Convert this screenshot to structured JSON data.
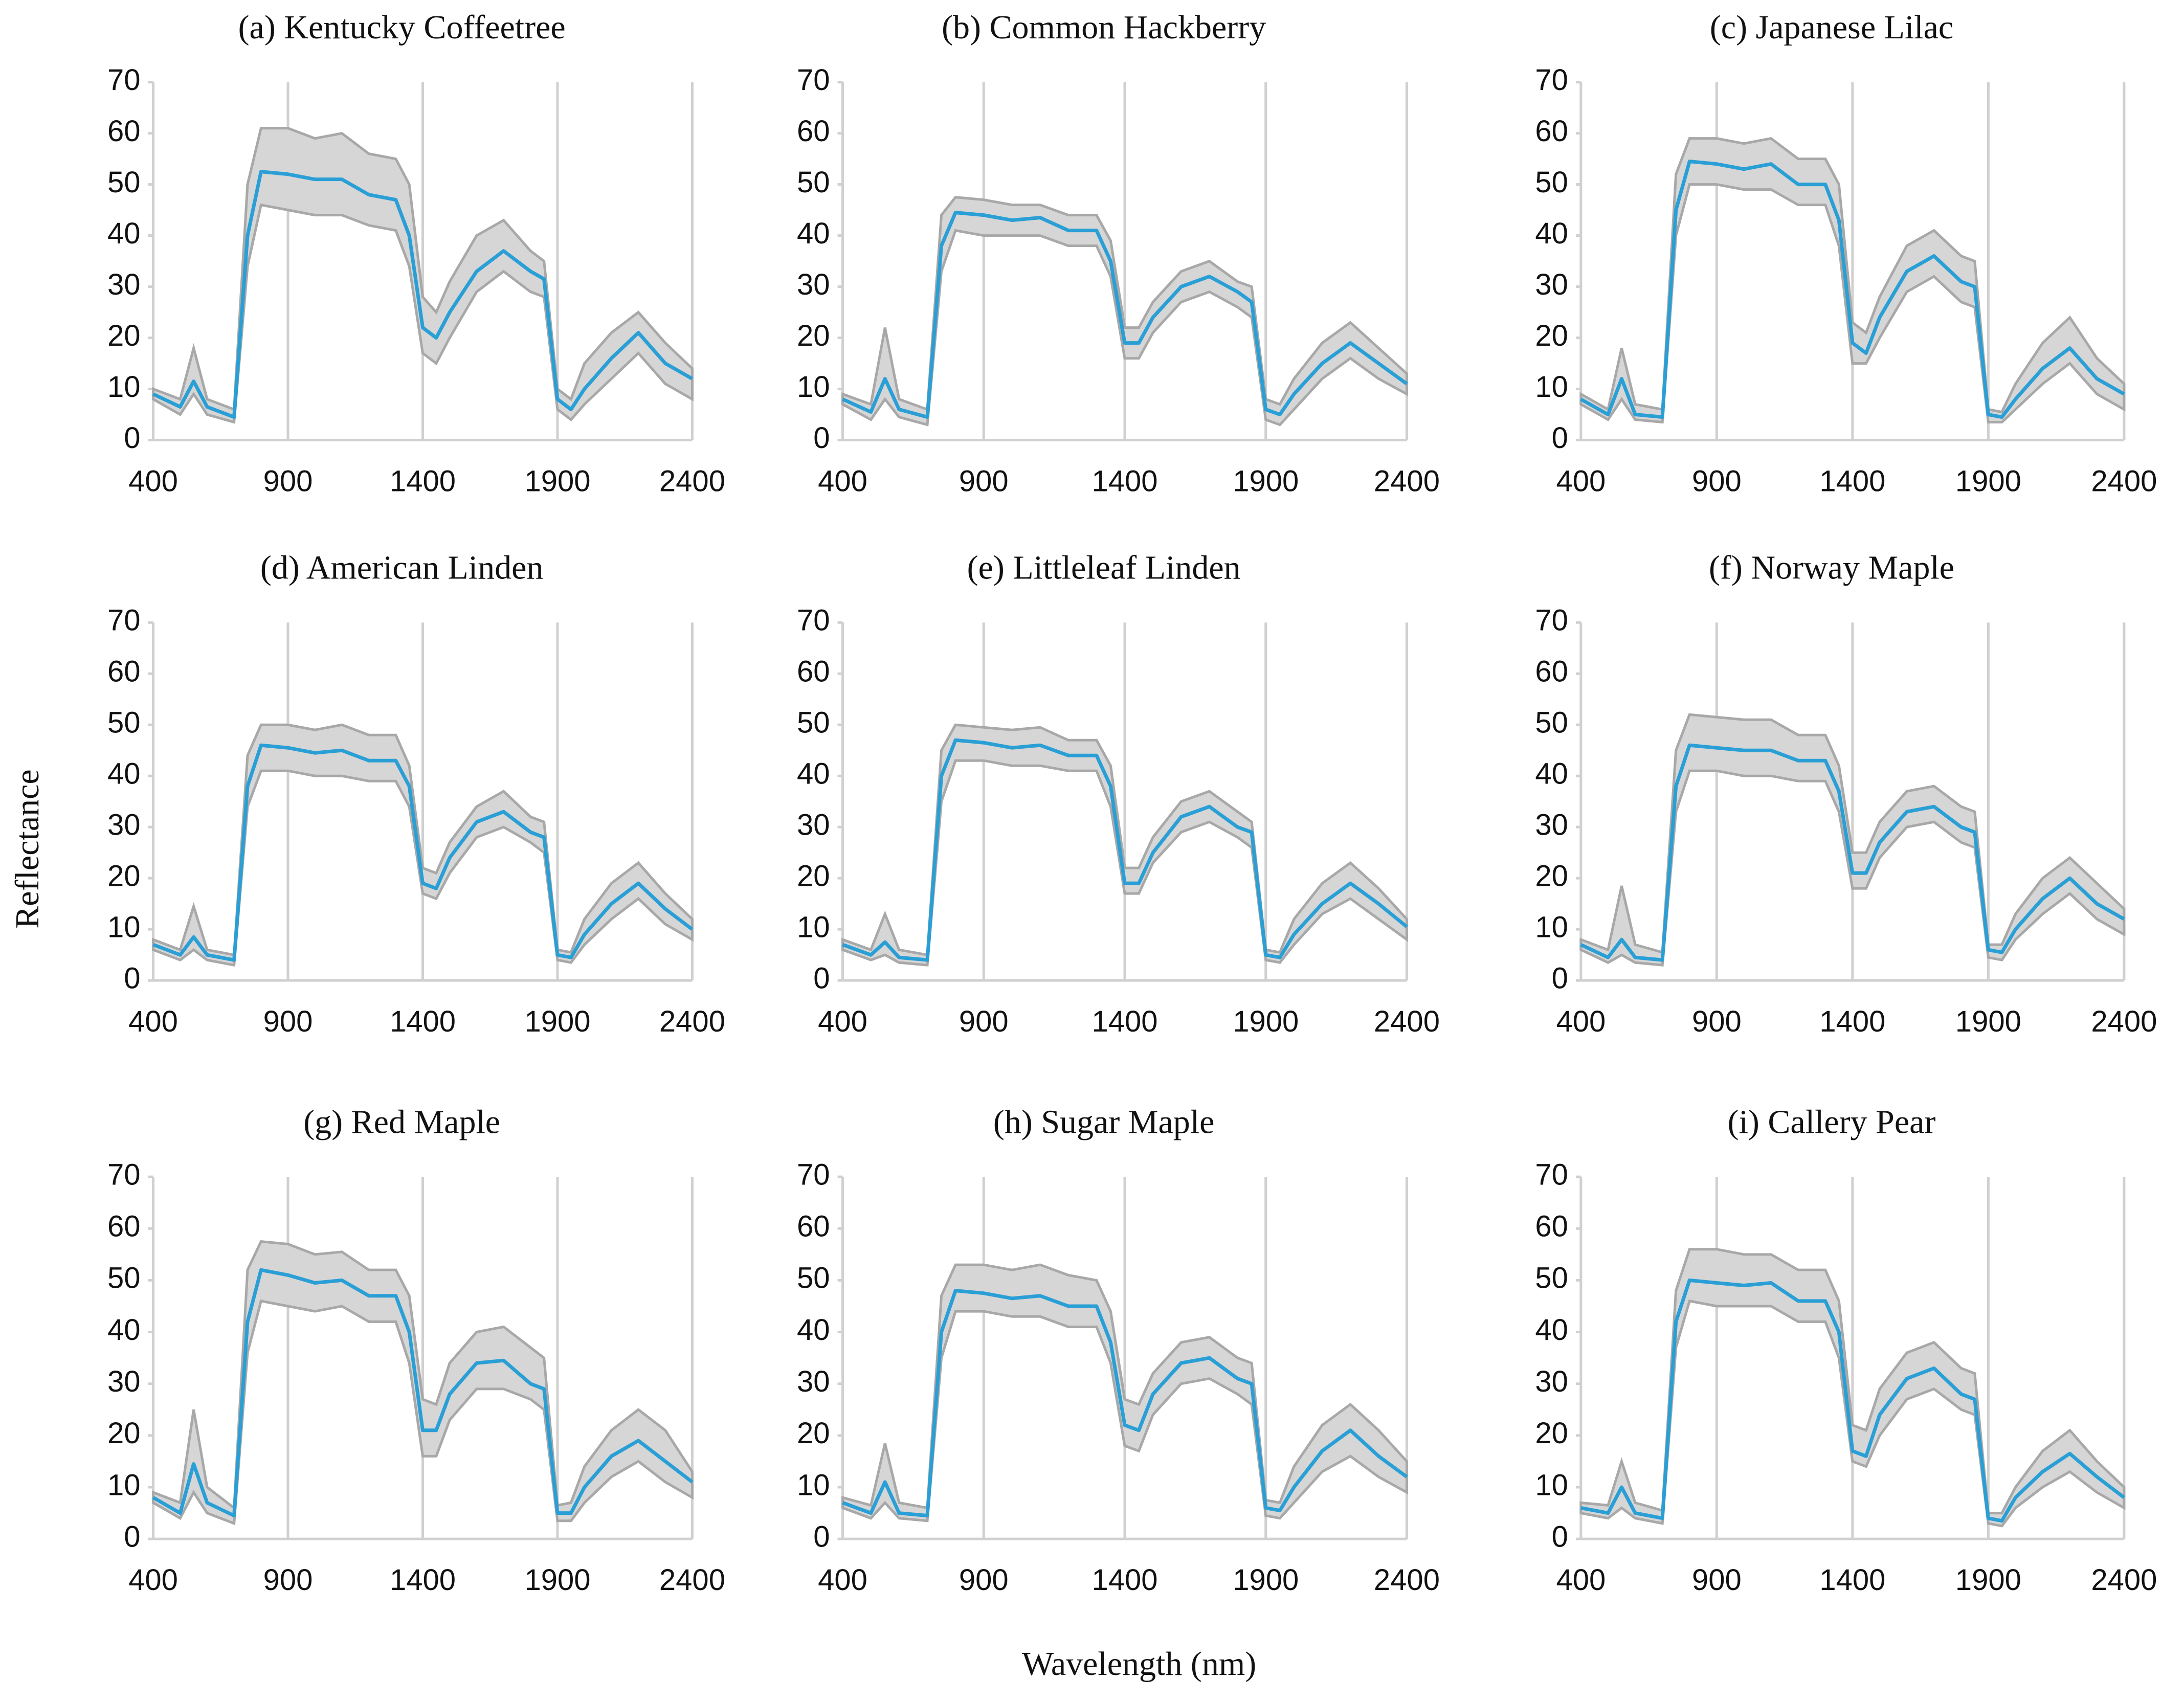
{
  "ylabel": "Reflectance",
  "xlabel": "Wavelength (nm)",
  "chart_data": [
    {
      "type": "line",
      "title": "(a) Kentucky Coffeetree",
      "x": [
        400,
        500,
        550,
        600,
        700,
        750,
        800,
        900,
        1000,
        1100,
        1200,
        1300,
        1350,
        1400,
        1450,
        1500,
        1600,
        1700,
        1800,
        1850,
        1900,
        1950,
        2000,
        2100,
        2200,
        2300,
        2400
      ],
      "series": [
        {
          "color": "#2a9fd6",
          "values": [
            9,
            6.5,
            11.5,
            6.5,
            4.5,
            40,
            52.5,
            52,
            51,
            51,
            48,
            47,
            40,
            22,
            20,
            25,
            33,
            37,
            33,
            31.5,
            8,
            6,
            10,
            16,
            21,
            15,
            12
          ]
        }
      ],
      "band": {
        "color": "#d6d6d6",
        "upper": [
          10,
          8,
          18,
          8,
          6,
          50,
          61,
          61,
          59,
          60,
          56,
          55,
          50,
          28,
          25,
          31,
          40,
          43,
          37,
          35,
          10,
          8,
          15,
          21,
          25,
          19,
          14
        ],
        "lower": [
          8,
          5,
          9,
          5,
          3.5,
          34,
          46,
          45,
          44,
          44,
          42,
          41,
          34,
          17,
          15,
          20,
          29,
          33,
          29,
          28,
          6,
          4,
          7,
          12,
          17,
          11,
          8
        ]
      },
      "xlim": [
        400,
        2400
      ],
      "xticks": [
        400,
        900,
        1400,
        1900,
        2400
      ],
      "ylim": [
        0,
        70
      ],
      "yticks": [
        0,
        10,
        20,
        30,
        40,
        50,
        60,
        70
      ],
      "grid": "x"
    },
    {
      "type": "line",
      "title": "(b) Common Hackberry",
      "x": [
        400,
        500,
        550,
        600,
        700,
        750,
        800,
        900,
        1000,
        1100,
        1200,
        1300,
        1350,
        1400,
        1450,
        1500,
        1600,
        1700,
        1800,
        1850,
        1900,
        1950,
        2000,
        2100,
        2200,
        2300,
        2400
      ],
      "series": [
        {
          "color": "#2a9fd6",
          "values": [
            8,
            5.5,
            12,
            6,
            4.5,
            38,
            44.5,
            44,
            43,
            43.5,
            41,
            41,
            35,
            19,
            19,
            24,
            30,
            32,
            29,
            27,
            6,
            5,
            9,
            15,
            19,
            15,
            11
          ]
        }
      ],
      "band": {
        "color": "#d6d6d6",
        "upper": [
          9,
          7,
          22,
          8,
          6,
          44,
          47.5,
          47,
          46,
          46,
          44,
          44,
          39,
          22,
          22,
          27,
          33,
          35,
          31,
          30,
          8,
          7,
          12,
          19,
          23,
          18,
          13
        ],
        "lower": [
          7,
          4,
          8,
          4.5,
          3,
          33,
          41,
          40,
          40,
          40,
          38,
          38,
          32,
          16,
          16,
          21,
          27,
          29,
          26,
          24,
          4,
          3,
          6,
          12,
          16,
          12,
          9
        ]
      },
      "xlim": [
        400,
        2400
      ],
      "xticks": [
        400,
        900,
        1400,
        1900,
        2400
      ],
      "ylim": [
        0,
        70
      ],
      "yticks": [
        0,
        10,
        20,
        30,
        40,
        50,
        60,
        70
      ],
      "grid": "x"
    },
    {
      "type": "line",
      "title": "(c) Japanese Lilac",
      "x": [
        400,
        500,
        550,
        600,
        700,
        750,
        800,
        900,
        1000,
        1100,
        1200,
        1300,
        1350,
        1400,
        1450,
        1500,
        1600,
        1700,
        1800,
        1850,
        1900,
        1950,
        2000,
        2100,
        2200,
        2300,
        2400
      ],
      "series": [
        {
          "color": "#2a9fd6",
          "values": [
            8,
            5,
            12,
            5,
            4.5,
            45,
            54.5,
            54,
            53,
            54,
            50,
            50,
            43,
            19,
            17,
            24,
            33,
            36,
            31,
            30,
            5,
            4.5,
            8,
            14,
            18,
            12,
            9
          ]
        }
      ],
      "band": {
        "color": "#d6d6d6",
        "upper": [
          9,
          6,
          18,
          7,
          6,
          52,
          59,
          59,
          58,
          59,
          55,
          55,
          50,
          23,
          21,
          28,
          38,
          41,
          36,
          35,
          6,
          5.5,
          11,
          19,
          24,
          16,
          11
        ],
        "lower": [
          7,
          4,
          8,
          4,
          3.5,
          40,
          50,
          50,
          49,
          49,
          46,
          46,
          38,
          15,
          15,
          20,
          29,
          32,
          27,
          26,
          3.5,
          3.5,
          6,
          11,
          15,
          9,
          6
        ]
      },
      "xlim": [
        400,
        2400
      ],
      "xticks": [
        400,
        900,
        1400,
        1900,
        2400
      ],
      "ylim": [
        0,
        70
      ],
      "yticks": [
        0,
        10,
        20,
        30,
        40,
        50,
        60,
        70
      ],
      "grid": "x"
    },
    {
      "type": "line",
      "title": "(d) American Linden",
      "x": [
        400,
        500,
        550,
        600,
        700,
        750,
        800,
        900,
        1000,
        1100,
        1200,
        1300,
        1350,
        1400,
        1450,
        1500,
        1600,
        1700,
        1800,
        1850,
        1900,
        1950,
        2000,
        2100,
        2200,
        2300,
        2400
      ],
      "series": [
        {
          "color": "#2a9fd6",
          "values": [
            7,
            5,
            8.5,
            5,
            4,
            38,
            46,
            45.5,
            44.5,
            45,
            43,
            43,
            38,
            19,
            18,
            24,
            31,
            33,
            29,
            28,
            5,
            4.5,
            9,
            15,
            19,
            14,
            10
          ]
        }
      ],
      "band": {
        "color": "#d6d6d6",
        "upper": [
          8,
          6,
          14.5,
          6,
          5,
          44,
          50,
          50,
          49,
          50,
          48,
          48,
          42,
          22,
          21,
          27,
          34,
          37,
          32,
          31,
          6,
          5.5,
          12,
          19,
          23,
          17,
          12
        ],
        "lower": [
          6,
          4,
          6,
          4,
          3,
          34,
          41,
          41,
          40,
          40,
          39,
          39,
          34,
          17,
          16,
          21,
          28,
          30,
          27,
          25,
          4,
          3.5,
          7,
          12,
          16,
          11,
          8
        ]
      },
      "xlim": [
        400,
        2400
      ],
      "xticks": [
        400,
        900,
        1400,
        1900,
        2400
      ],
      "ylim": [
        0,
        70
      ],
      "yticks": [
        0,
        10,
        20,
        30,
        40,
        50,
        60,
        70
      ],
      "grid": "x"
    },
    {
      "type": "line",
      "title": "(e) Littleleaf Linden",
      "x": [
        400,
        500,
        550,
        600,
        700,
        750,
        800,
        900,
        1000,
        1100,
        1200,
        1300,
        1350,
        1400,
        1450,
        1500,
        1600,
        1700,
        1800,
        1850,
        1900,
        1950,
        2000,
        2100,
        2200,
        2300,
        2400
      ],
      "series": [
        {
          "color": "#2a9fd6",
          "values": [
            7,
            5,
            7.5,
            4.5,
            4,
            40,
            47,
            46.5,
            45.5,
            46,
            44,
            44,
            38,
            19,
            19,
            25,
            32,
            34,
            30,
            29,
            5,
            4.5,
            9,
            15,
            19,
            15,
            10.5
          ]
        }
      ],
      "band": {
        "color": "#d6d6d6",
        "upper": [
          8,
          6,
          13,
          6,
          5,
          45,
          50,
          49.5,
          49,
          49.5,
          47,
          47,
          42,
          22,
          22,
          28,
          35,
          37,
          33,
          31,
          6,
          5.5,
          12,
          19,
          23,
          18,
          12
        ],
        "lower": [
          6,
          4,
          5,
          3.5,
          3,
          35,
          43,
          43,
          42,
          42,
          41,
          41,
          34,
          17,
          17,
          23,
          29,
          31,
          28,
          26,
          4,
          3.5,
          7,
          13,
          16,
          12,
          8
        ]
      },
      "xlim": [
        400,
        2400
      ],
      "xticks": [
        400,
        900,
        1400,
        1900,
        2400
      ],
      "ylim": [
        0,
        70
      ],
      "yticks": [
        0,
        10,
        20,
        30,
        40,
        50,
        60,
        70
      ],
      "grid": "x"
    },
    {
      "type": "line",
      "title": "(f) Norway Maple",
      "x": [
        400,
        500,
        550,
        600,
        700,
        750,
        800,
        900,
        1000,
        1100,
        1200,
        1300,
        1350,
        1400,
        1450,
        1500,
        1600,
        1700,
        1800,
        1850,
        1900,
        1950,
        2000,
        2100,
        2200,
        2300,
        2400
      ],
      "series": [
        {
          "color": "#2a9fd6",
          "values": [
            7,
            4.5,
            8,
            4.5,
            4,
            38,
            46,
            45.5,
            45,
            45,
            43,
            43,
            37,
            21,
            21,
            27,
            33,
            34,
            30,
            29,
            6,
            5.5,
            10,
            16,
            20,
            15,
            12
          ]
        }
      ],
      "band": {
        "color": "#d6d6d6",
        "upper": [
          8,
          6,
          18.5,
          7,
          5.5,
          45,
          52,
          51.5,
          51,
          51,
          48,
          48,
          42,
          25,
          25,
          31,
          37,
          38,
          34,
          33,
          7,
          7,
          13,
          20,
          24,
          19,
          14
        ],
        "lower": [
          6,
          3.5,
          5,
          3.5,
          3,
          33,
          41,
          41,
          40,
          40,
          39,
          39,
          33,
          18,
          18,
          24,
          30,
          31,
          27,
          26,
          4.5,
          4,
          8,
          13,
          17,
          12,
          9
        ]
      },
      "xlim": [
        400,
        2400
      ],
      "xticks": [
        400,
        900,
        1400,
        1900,
        2400
      ],
      "ylim": [
        0,
        70
      ],
      "yticks": [
        0,
        10,
        20,
        30,
        40,
        50,
        60,
        70
      ],
      "grid": "x"
    },
    {
      "type": "line",
      "title": "(g) Red Maple",
      "x": [
        400,
        500,
        550,
        600,
        700,
        750,
        800,
        900,
        1000,
        1100,
        1200,
        1300,
        1350,
        1400,
        1450,
        1500,
        1600,
        1700,
        1800,
        1850,
        1900,
        1950,
        2000,
        2100,
        2200,
        2300,
        2400
      ],
      "series": [
        {
          "color": "#2a9fd6",
          "values": [
            8,
            5,
            14.5,
            7,
            4.5,
            42,
            52,
            51,
            49.5,
            50,
            47,
            47,
            40,
            21,
            21,
            28,
            34,
            34.5,
            30,
            29,
            5,
            5,
            10,
            16,
            19,
            15,
            11
          ]
        }
      ],
      "band": {
        "color": "#d6d6d6",
        "upper": [
          9,
          7,
          25,
          10,
          6,
          52,
          57.5,
          57,
          55,
          55.5,
          52,
          52,
          47,
          27,
          26,
          34,
          40,
          41,
          37,
          35,
          6.5,
          7,
          14,
          21,
          25,
          21,
          13
        ],
        "lower": [
          7,
          4,
          9,
          5,
          3,
          36,
          46,
          45,
          44,
          45,
          42,
          42,
          34,
          16,
          16,
          23,
          29,
          29,
          27,
          25,
          3.5,
          3.5,
          7,
          12,
          15,
          11,
          8
        ]
      },
      "xlim": [
        400,
        2400
      ],
      "xticks": [
        400,
        900,
        1400,
        1900,
        2400
      ],
      "ylim": [
        0,
        70
      ],
      "yticks": [
        0,
        10,
        20,
        30,
        40,
        50,
        60,
        70
      ],
      "grid": "x"
    },
    {
      "type": "line",
      "title": "(h) Sugar Maple",
      "x": [
        400,
        500,
        550,
        600,
        700,
        750,
        800,
        900,
        1000,
        1100,
        1200,
        1300,
        1350,
        1400,
        1450,
        1500,
        1600,
        1700,
        1800,
        1850,
        1900,
        1950,
        2000,
        2100,
        2200,
        2300,
        2400
      ],
      "series": [
        {
          "color": "#2a9fd6",
          "values": [
            7,
            5,
            11,
            5,
            4.5,
            40,
            48,
            47.5,
            46.5,
            47,
            45,
            45,
            38,
            22,
            21,
            28,
            34,
            35,
            31,
            30,
            6,
            5.5,
            10,
            17,
            21,
            16,
            12
          ]
        }
      ],
      "band": {
        "color": "#d6d6d6",
        "upper": [
          8,
          6.5,
          18.5,
          7,
          6,
          47,
          53,
          53,
          52,
          53,
          51,
          50,
          44,
          27,
          26,
          32,
          38,
          39,
          35,
          34,
          7.5,
          7,
          14,
          22,
          26,
          21,
          15
        ],
        "lower": [
          6,
          4,
          7,
          4,
          3.5,
          35,
          44,
          44,
          43,
          43,
          41,
          41,
          34,
          18,
          17,
          24,
          30,
          31,
          28,
          26,
          4.5,
          4,
          7,
          13,
          16,
          12,
          9
        ]
      },
      "xlim": [
        400,
        2400
      ],
      "xticks": [
        400,
        900,
        1400,
        1900,
        2400
      ],
      "ylim": [
        0,
        70
      ],
      "yticks": [
        0,
        10,
        20,
        30,
        40,
        50,
        60,
        70
      ],
      "grid": "x"
    },
    {
      "type": "line",
      "title": "(i) Callery Pear",
      "x": [
        400,
        500,
        550,
        600,
        700,
        750,
        800,
        900,
        1000,
        1100,
        1200,
        1300,
        1350,
        1400,
        1450,
        1500,
        1600,
        1700,
        1800,
        1850,
        1900,
        1950,
        2000,
        2100,
        2200,
        2300,
        2400
      ],
      "series": [
        {
          "color": "#2a9fd6",
          "values": [
            6,
            5,
            10,
            5,
            4,
            42,
            50,
            49.5,
            49,
            49.5,
            46,
            46,
            40,
            17,
            16,
            24,
            31,
            33,
            28,
            27,
            4,
            3.5,
            8,
            13,
            16.5,
            12,
            8
          ]
        }
      ],
      "band": {
        "color": "#d6d6d6",
        "upper": [
          7,
          6.5,
          15,
          7,
          5.5,
          48,
          56,
          56,
          55,
          55,
          52,
          52,
          46,
          22,
          21,
          29,
          36,
          38,
          33,
          32,
          5,
          5,
          10,
          17,
          21,
          15,
          10
        ],
        "lower": [
          5,
          4,
          6,
          4,
          3,
          37,
          46,
          45,
          45,
          45,
          42,
          42,
          35,
          15,
          14,
          20,
          27,
          29,
          25,
          24,
          3,
          2.5,
          6,
          10,
          13,
          9,
          6
        ]
      },
      "xlim": [
        400,
        2400
      ],
      "xticks": [
        400,
        900,
        1400,
        1900,
        2400
      ],
      "ylim": [
        0,
        70
      ],
      "yticks": [
        0,
        10,
        20,
        30,
        40,
        50,
        60,
        70
      ],
      "grid": "x"
    }
  ]
}
